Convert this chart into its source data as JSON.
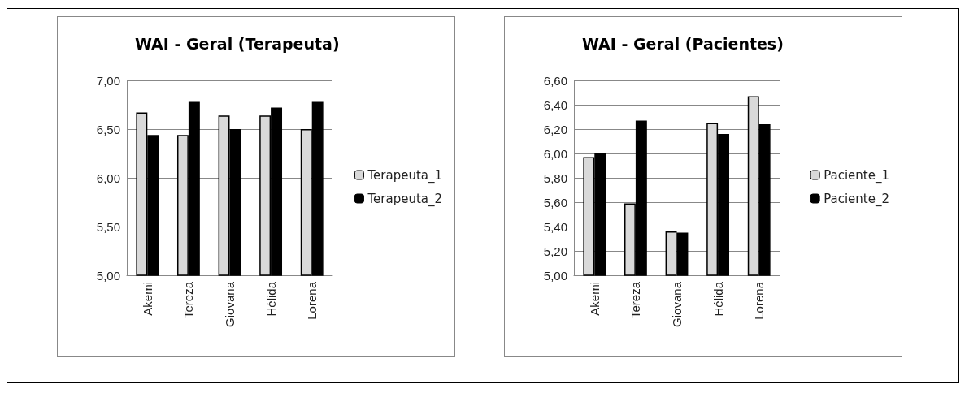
{
  "chart_data": [
    {
      "type": "bar",
      "title": "WAI - Geral (Terapeuta)",
      "categories": [
        "Akemi",
        "Tereza",
        "Giovana",
        "Hélida",
        "Lorena"
      ],
      "series": [
        {
          "name": "Terapeuta_1",
          "color": "#d9d9d9",
          "values": [
            6.67,
            6.44,
            6.64,
            6.64,
            6.5
          ]
        },
        {
          "name": "Terapeuta_2",
          "color": "#000000",
          "values": [
            6.44,
            6.78,
            6.5,
            6.72,
            6.78
          ]
        }
      ],
      "ylim": [
        5,
        7
      ],
      "yticks": [
        {
          "value": 5,
          "label": "5,00"
        },
        {
          "value": 5.5,
          "label": "5,50"
        },
        {
          "value": 6,
          "label": "6,00"
        },
        {
          "value": 6.5,
          "label": "6,50"
        },
        {
          "value": 7,
          "label": "7,00"
        }
      ],
      "grid": "y",
      "legend": "right"
    },
    {
      "type": "bar",
      "title": "WAI - Geral (Pacientes)",
      "categories": [
        "Akemi",
        "Tereza",
        "Giovana",
        "Hélida",
        "Lorena"
      ],
      "series": [
        {
          "name": "Paciente_1",
          "color": "#d9d9d9",
          "values": [
            5.97,
            5.59,
            5.36,
            6.25,
            6.47
          ]
        },
        {
          "name": "Paciente_2",
          "color": "#000000",
          "values": [
            6.0,
            6.27,
            5.35,
            6.16,
            6.24
          ]
        }
      ],
      "ylim": [
        5,
        6.6
      ],
      "yticks": [
        {
          "value": 5,
          "label": "5,00"
        },
        {
          "value": 5.2,
          "label": "5,20"
        },
        {
          "value": 5.4,
          "label": "5,40"
        },
        {
          "value": 5.6,
          "label": "5,60"
        },
        {
          "value": 5.8,
          "label": "5,80"
        },
        {
          "value": 6,
          "label": "6,00"
        },
        {
          "value": 6.2,
          "label": "6,20"
        },
        {
          "value": 6.4,
          "label": "6,40"
        },
        {
          "value": 6.6,
          "label": "6,60"
        }
      ],
      "grid": "y",
      "legend": "right"
    }
  ]
}
